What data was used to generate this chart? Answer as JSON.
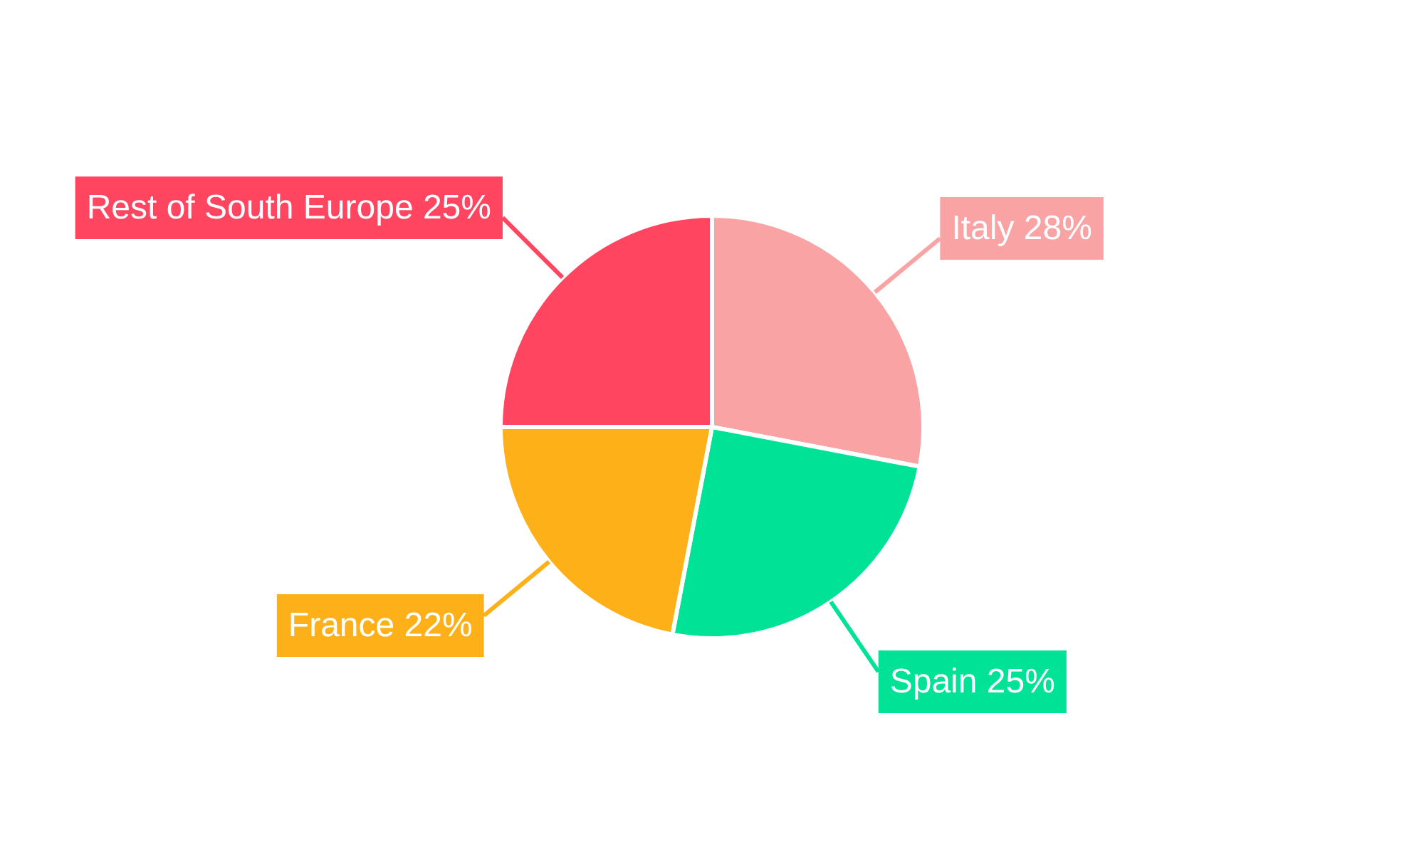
{
  "chart_data": {
    "type": "pie",
    "categories": [
      "Italy",
      "Spain",
      "France",
      "Rest of South Europe"
    ],
    "values": [
      28,
      25,
      22,
      25
    ],
    "colors": [
      "#f9a3a4",
      "#00e396",
      "#feb019",
      "#ff4560"
    ],
    "value_labels": [
      "28%",
      "25%",
      "22%",
      "25%"
    ]
  }
}
